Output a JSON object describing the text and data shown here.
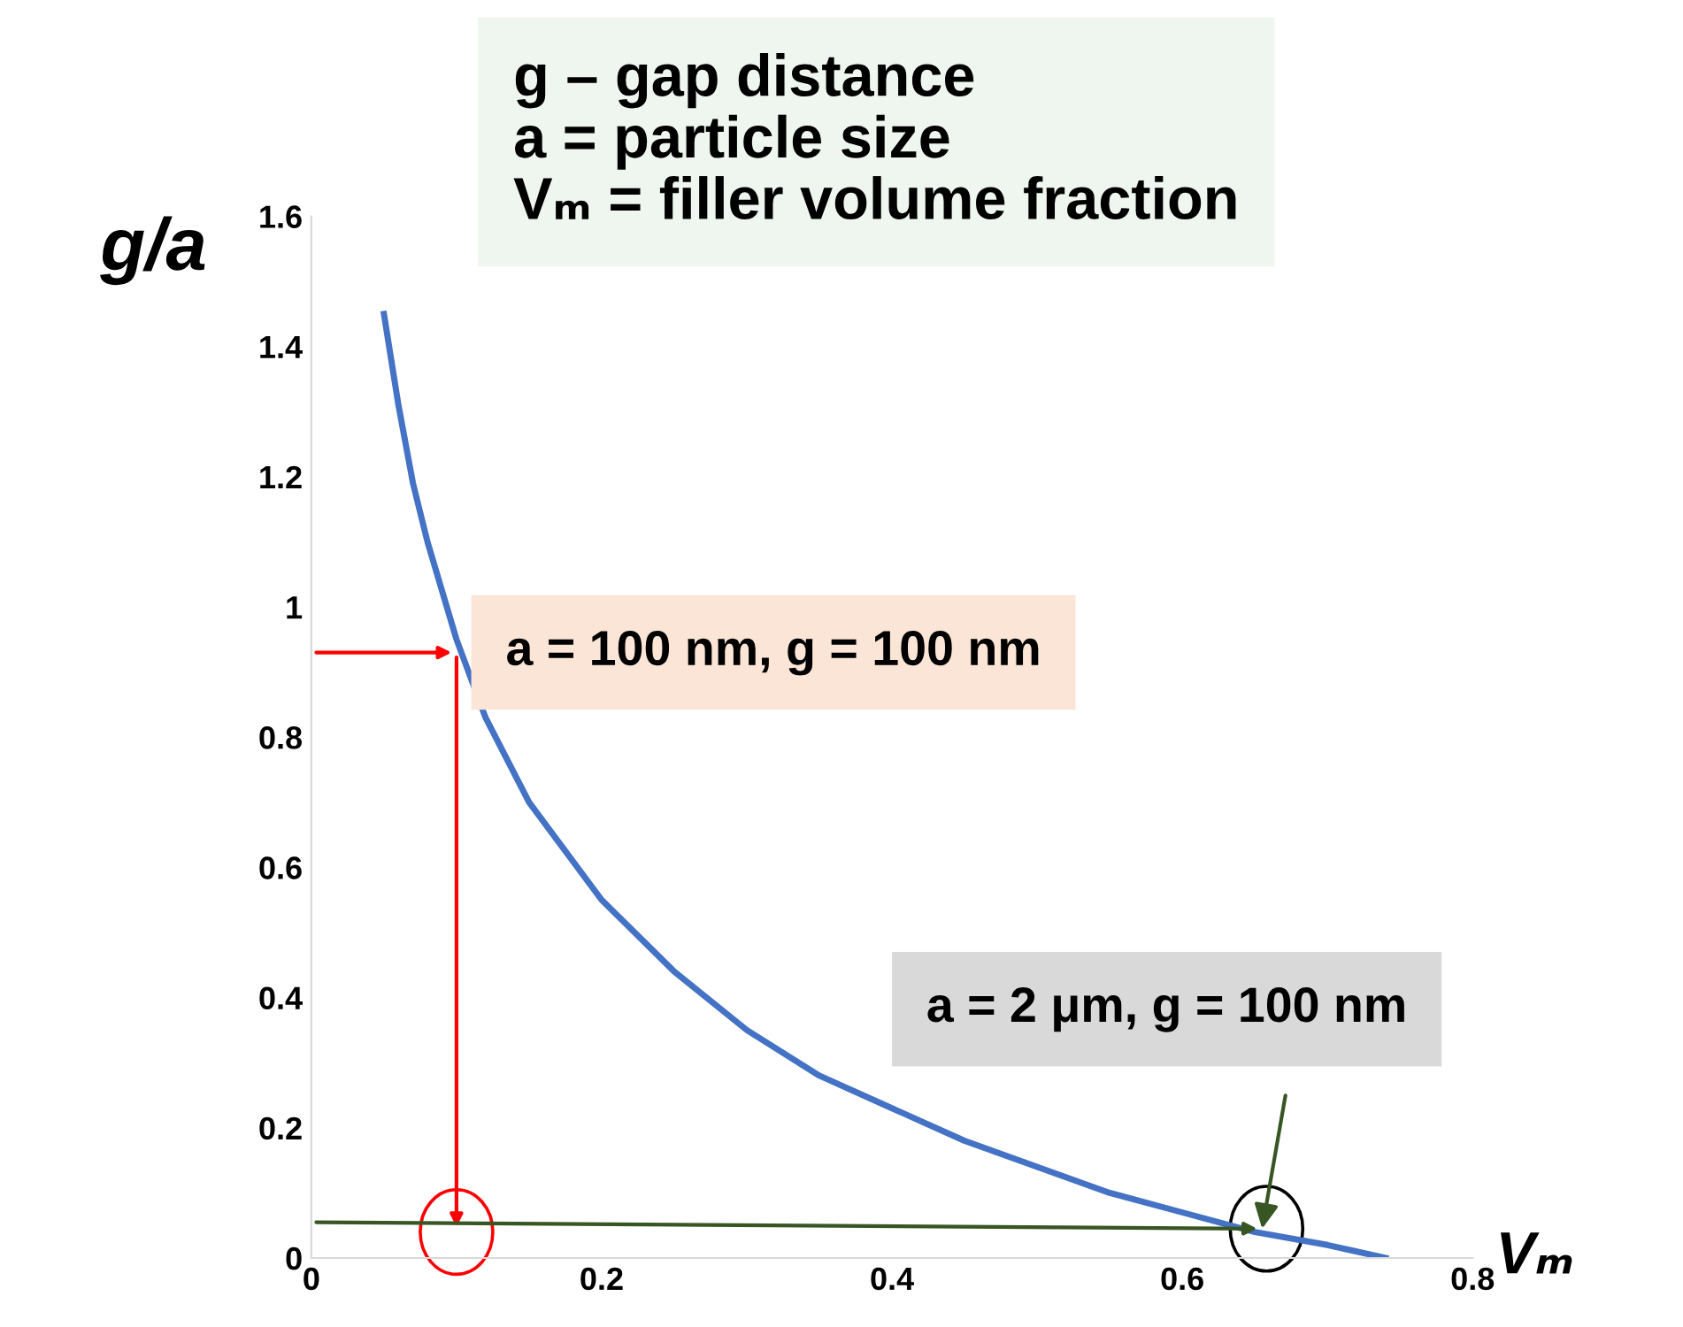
{
  "chart_data": {
    "type": "line",
    "xlabel": "Vₘ",
    "ylabel": "g/a",
    "xlim": [
      0,
      0.8
    ],
    "ylim": [
      0,
      1.6
    ],
    "xticks": [
      0,
      0.2,
      0.4,
      0.6,
      0.8
    ],
    "yticks": [
      0,
      0.2,
      0.4,
      0.6,
      0.8,
      1,
      1.2,
      1.4,
      1.6
    ],
    "grid": false,
    "legend": false,
    "marker": "none",
    "line_style": "solid",
    "series": [
      {
        "color": "#4472c4",
        "x": [
          0.05,
          0.06,
          0.07,
          0.08,
          0.1,
          0.12,
          0.15,
          0.2,
          0.25,
          0.3,
          0.35,
          0.4,
          0.45,
          0.5,
          0.55,
          0.6,
          0.65,
          0.7,
          0.74
        ],
        "values": [
          1.45,
          1.31,
          1.19,
          1.1,
          0.95,
          0.83,
          0.7,
          0.55,
          0.44,
          0.35,
          0.28,
          0.23,
          0.18,
          0.14,
          0.1,
          0.07,
          0.04,
          0.02,
          0
        ]
      }
    ],
    "annotations": [
      "g – gap distance",
      "a = particle size",
      "Vₘ = filler volume fraction",
      {
        "text": "a = 100 nm, g = 100 nm",
        "x": 0.1,
        "y": 0.93
      },
      {
        "text": "a = 2 μm, g = 100 nm",
        "x": 0.655,
        "y": 0.045
      }
    ]
  }
}
